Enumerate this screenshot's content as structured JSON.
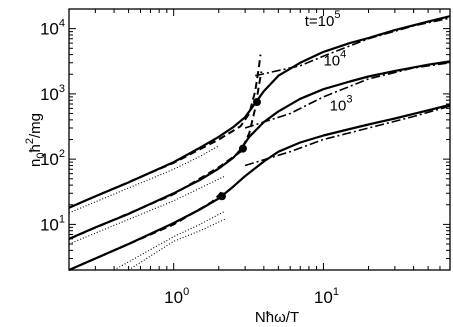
{
  "chart_data": {
    "type": "line",
    "xscale": "log",
    "yscale": "log",
    "xlim": [
      0.2,
      70
    ],
    "ylim": [
      2,
      20000
    ],
    "grid": false,
    "xlabel": {
      "base": "Nħω/T"
    },
    "ylabel": {
      "pre": "n",
      "sub": "0",
      "mid": "ħ",
      "sup": "2",
      "post": "/mg"
    },
    "x_ticks": [
      {
        "value": 1,
        "base": "10",
        "exp": "0"
      },
      {
        "value": 10,
        "base": "10",
        "exp": "1"
      }
    ],
    "y_ticks": [
      {
        "value": 10,
        "base": "10",
        "exp": "1"
      },
      {
        "value": 100,
        "base": "10",
        "exp": "2"
      },
      {
        "value": 1000,
        "base": "10",
        "exp": "3"
      },
      {
        "value": 10000,
        "base": "10",
        "exp": "4"
      }
    ],
    "annotations": [
      {
        "id": "t1e5",
        "base": "t=10",
        "exp": "5",
        "x": 7.5,
        "y": 11000
      },
      {
        "id": "t1e4",
        "base": "10",
        "exp": "4",
        "x": 10,
        "y": 2700
      },
      {
        "id": "t1e3",
        "base": "10",
        "exp": "3",
        "x": 11,
        "y": 560
      }
    ],
    "series": [
      {
        "style": "solid",
        "points": [
          [
            0.2,
            18
          ],
          [
            0.3,
            27
          ],
          [
            0.5,
            44
          ],
          [
            1,
            90
          ],
          [
            1.5,
            150
          ],
          [
            2,
            220
          ],
          [
            2.5,
            310
          ],
          [
            3,
            440
          ],
          [
            3.5,
            720
          ],
          [
            4,
            1100
          ],
          [
            5,
            1900
          ],
          [
            7,
            3000
          ],
          [
            10,
            4400
          ],
          [
            15,
            6000
          ],
          [
            20,
            7200
          ],
          [
            30,
            9500
          ],
          [
            50,
            12800
          ],
          [
            70,
            15500
          ]
        ]
      },
      {
        "style": "solid",
        "points": [
          [
            0.2,
            6
          ],
          [
            0.3,
            9
          ],
          [
            0.5,
            14.5
          ],
          [
            1,
            30
          ],
          [
            1.5,
            48
          ],
          [
            2,
            72
          ],
          [
            2.5,
            105
          ],
          [
            2.8,
            140
          ],
          [
            3.2,
            220
          ],
          [
            4,
            370
          ],
          [
            5,
            540
          ],
          [
            7,
            840
          ],
          [
            10,
            1180
          ],
          [
            15,
            1550
          ],
          [
            20,
            1850
          ],
          [
            30,
            2250
          ],
          [
            50,
            2800
          ],
          [
            70,
            3150
          ]
        ]
      },
      {
        "style": "solid",
        "points": [
          [
            0.2,
            2
          ],
          [
            0.3,
            3
          ],
          [
            0.5,
            5
          ],
          [
            1,
            10.5
          ],
          [
            1.5,
            17
          ],
          [
            2,
            25
          ],
          [
            2.5,
            38
          ],
          [
            3,
            55
          ],
          [
            4,
            92
          ],
          [
            5,
            130
          ],
          [
            7,
            180
          ],
          [
            10,
            230
          ],
          [
            15,
            290
          ],
          [
            20,
            340
          ],
          [
            30,
            420
          ],
          [
            50,
            560
          ],
          [
            70,
            680
          ]
        ]
      },
      {
        "style": "dashed",
        "points": [
          [
            0.2,
            18
          ],
          [
            1,
            88
          ],
          [
            2,
            200
          ],
          [
            2.8,
            320
          ],
          [
            3.2,
            500
          ],
          [
            3.5,
            1100
          ],
          [
            3.7,
            2500
          ],
          [
            3.8,
            4000
          ]
        ]
      },
      {
        "style": "dashed",
        "points": [
          [
            0.2,
            6
          ],
          [
            1,
            29
          ],
          [
            2,
            75
          ],
          [
            2.8,
            130
          ],
          [
            3.2,
            250
          ],
          [
            3.5,
            600
          ],
          [
            3.7,
            1300
          ],
          [
            3.85,
            2200
          ]
        ]
      },
      {
        "style": "dashed",
        "points": [
          [
            0.2,
            2
          ],
          [
            1,
            10
          ],
          [
            1.8,
            22
          ],
          [
            2,
            28
          ],
          [
            2.1,
            32
          ]
        ]
      },
      {
        "style": "dashdot",
        "points": [
          [
            3.5,
            1900
          ],
          [
            7,
            2700
          ],
          [
            10,
            3800
          ],
          [
            20,
            7000
          ],
          [
            40,
            11000
          ],
          [
            70,
            14500
          ]
        ]
      },
      {
        "style": "dashdot",
        "points": [
          [
            3,
            300
          ],
          [
            6,
            500
          ],
          [
            10,
            900
          ],
          [
            20,
            1700
          ],
          [
            40,
            2500
          ],
          [
            70,
            3000
          ]
        ]
      },
      {
        "style": "dashdot",
        "points": [
          [
            3,
            80
          ],
          [
            6,
            130
          ],
          [
            10,
            200
          ],
          [
            20,
            300
          ],
          [
            40,
            450
          ],
          [
            70,
            650
          ]
        ]
      },
      {
        "style": "dotted",
        "points": [
          [
            0.2,
            15
          ],
          [
            1,
            70
          ],
          [
            1.5,
            110
          ],
          [
            2,
            160
          ]
        ]
      },
      {
        "style": "dotted",
        "points": [
          [
            0.2,
            5
          ],
          [
            1,
            23
          ],
          [
            1.5,
            36
          ],
          [
            2.2,
            55
          ]
        ]
      },
      {
        "style": "dotted",
        "points": [
          [
            0.4,
            2
          ],
          [
            1,
            6.5
          ],
          [
            1.5,
            10
          ],
          [
            2.2,
            16
          ]
        ]
      },
      {
        "style": "dotted",
        "points": [
          [
            0.5,
            2
          ],
          [
            1,
            5.5
          ],
          [
            1.5,
            8
          ],
          [
            2.2,
            12
          ]
        ]
      }
    ],
    "markers": [
      {
        "x": 3.6,
        "y": 750
      },
      {
        "x": 2.9,
        "y": 145
      },
      {
        "x": 2.1,
        "y": 27
      }
    ]
  }
}
